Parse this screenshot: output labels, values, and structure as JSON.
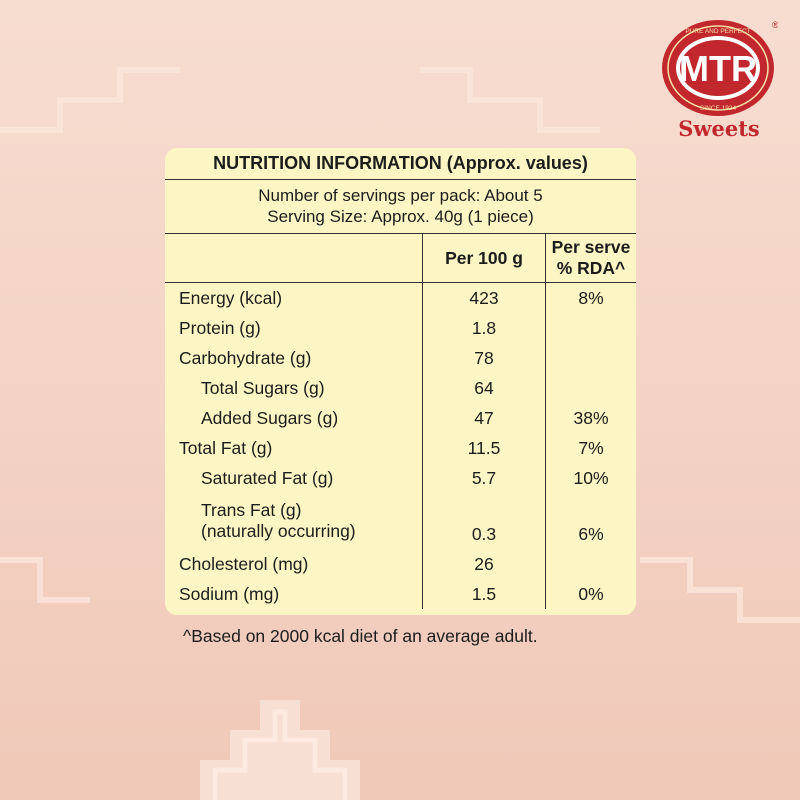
{
  "brand": {
    "logo_text": "MTR",
    "logo_ring_top": "PURE AND PERFECT",
    "logo_ring_bottom": "SINCE 1924",
    "registered_mark": "®",
    "product_line": "Sweets"
  },
  "colors": {
    "brand_red": "#c1272d",
    "table_bg": "#fdf6c4",
    "page_bg": "#f4d4c6"
  },
  "table": {
    "title": "NUTRITION INFORMATION (Approx. values)",
    "servings_per_pack": "Number of servings per pack: About 5",
    "serving_size": "Serving Size: Approx. 40g (1 piece)",
    "col_per100": "Per 100 g",
    "col_rda_line1": "Per serve",
    "col_rda_line2": "% RDA^",
    "rows": [
      {
        "label": "Energy (kcal)",
        "per100": "423",
        "rda": "8%"
      },
      {
        "label": "Protein (g)",
        "per100": "1.8",
        "rda": ""
      },
      {
        "label": "Carbohydrate (g)",
        "per100": "78",
        "rda": ""
      },
      {
        "label": "Total Sugars (g)",
        "per100": "64",
        "rda": ""
      },
      {
        "label": "Added Sugars (g)",
        "per100": "47",
        "rda": "38%"
      },
      {
        "label": "Total Fat (g)",
        "per100": "11.5",
        "rda": "7%"
      },
      {
        "label": "Saturated Fat (g)",
        "per100": "5.7",
        "rda": "10%"
      },
      {
        "label": "Trans Fat (g)",
        "label2": "(naturally occurring)",
        "per100": "0.3",
        "rda": "6%"
      },
      {
        "label": "Cholesterol (mg)",
        "per100": "26",
        "rda": ""
      },
      {
        "label": "Sodium (mg)",
        "per100": "1.5",
        "rda": "0%"
      }
    ]
  },
  "footnote": "^Based on 2000 kcal diet of an average adult."
}
